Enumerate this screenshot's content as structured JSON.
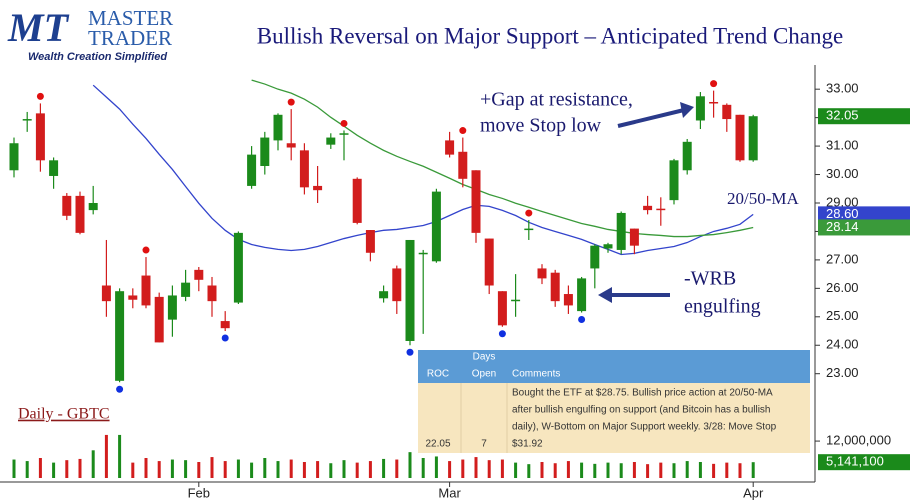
{
  "header": {
    "logo_mark": "MT",
    "logo_line1": "MASTER",
    "logo_line2": "TRADER",
    "tagline": "Wealth Creation Simplified"
  },
  "chart_data": {
    "type": "candlestick",
    "title": "Bullish Reversal on Major Support – Anticipated Trend Change",
    "label": "Daily - GBTC",
    "categories": [
      null,
      null,
      null,
      null,
      null,
      null,
      null,
      null,
      null,
      null,
      null,
      null,
      null,
      null,
      "Feb",
      null,
      null,
      null,
      null,
      null,
      null,
      null,
      null,
      null,
      null,
      null,
      null,
      null,
      null,
      null,
      null,
      null,
      null,
      "Mar",
      null,
      null,
      null,
      null,
      null,
      null,
      null,
      null,
      null,
      null,
      null,
      null,
      null,
      null,
      null,
      null,
      null,
      null,
      null,
      null,
      null,
      null,
      "Apr"
    ],
    "open": [
      30.15,
      31.9,
      32.15,
      29.95,
      29.25,
      29.25,
      28.75,
      26.1,
      22.75,
      25.75,
      26.45,
      25.7,
      24.9,
      25.7,
      26.65,
      26.1,
      24.85,
      25.5,
      29.6,
      30.3,
      31.2,
      31.1,
      30.85,
      29.6,
      31.05,
      31.4,
      29.85,
      28.05,
      25.65,
      26.7,
      24.15,
      27.2,
      26.95,
      31.2,
      30.8,
      30.15,
      27.75,
      25.9,
      25.55,
      28.05,
      26.7,
      26.55,
      25.8,
      25.2,
      26.7,
      27.4,
      27.35,
      28.1,
      28.9,
      28.8,
      29.1,
      30.15,
      31.9,
      32.55,
      32.45,
      32.1,
      30.5
    ],
    "high": [
      31.3,
      32.2,
      32.5,
      30.6,
      29.35,
      29.4,
      29.6,
      27.7,
      26.0,
      26.0,
      27.1,
      25.85,
      26.1,
      26.65,
      26.75,
      26.4,
      25.2,
      28.0,
      31.0,
      31.5,
      32.15,
      32.3,
      31.1,
      30.3,
      31.45,
      31.55,
      29.9,
      28.05,
      26.1,
      26.8,
      27.7,
      27.35,
      29.5,
      31.5,
      31.3,
      30.15,
      27.75,
      25.9,
      26.5,
      28.4,
      26.85,
      26.65,
      26.1,
      26.4,
      27.55,
      27.6,
      28.7,
      28.1,
      29.25,
      29.2,
      30.55,
      31.25,
      32.9,
      32.95,
      32.5,
      32.1,
      32.1
    ],
    "low": [
      29.9,
      31.5,
      30.1,
      29.5,
      28.4,
      27.9,
      28.6,
      25.0,
      22.7,
      25.3,
      25.3,
      24.1,
      24.3,
      25.55,
      25.9,
      25.0,
      24.5,
      25.45,
      29.5,
      30.0,
      30.85,
      30.5,
      29.3,
      29.0,
      30.9,
      30.5,
      28.25,
      26.95,
      25.5,
      25.1,
      24.0,
      24.4,
      26.9,
      30.6,
      29.55,
      27.6,
      25.8,
      24.65,
      25.0,
      27.7,
      26.15,
      25.35,
      25.1,
      25.15,
      26.0,
      27.25,
      27.2,
      27.2,
      28.6,
      28.2,
      28.95,
      30.0,
      31.6,
      32.0,
      31.5,
      30.45,
      30.45
    ],
    "close": [
      31.1,
      31.95,
      30.5,
      30.5,
      28.55,
      27.95,
      29.0,
      25.55,
      25.9,
      25.6,
      25.4,
      24.1,
      25.75,
      26.2,
      26.3,
      25.55,
      24.6,
      27.95,
      30.7,
      31.3,
      32.1,
      30.95,
      29.55,
      29.45,
      31.3,
      31.45,
      28.3,
      27.25,
      25.9,
      25.55,
      27.7,
      27.25,
      29.4,
      30.7,
      29.85,
      27.95,
      26.1,
      24.7,
      25.6,
      28.1,
      26.35,
      25.55,
      25.4,
      26.35,
      27.5,
      27.55,
      28.65,
      27.5,
      28.75,
      28.75,
      30.5,
      31.15,
      32.75,
      32.5,
      31.95,
      30.5,
      32.05
    ],
    "close_label": {
      "value": 32.05,
      "label": "32.05"
    },
    "up_color": "#1b8a1b",
    "down_color": "#d21d1d",
    "pivot_highs": [
      2,
      10,
      21,
      25,
      34,
      39,
      53
    ],
    "pivot_lows": [
      8,
      16,
      30,
      37,
      43
    ],
    "pivot_high_color": "#e01010",
    "pivot_low_color": "#1030e0",
    "series": [
      {
        "name": "20-MA",
        "color": "#3344cc",
        "last_label": {
          "value": 28.6,
          "label": "28.60"
        },
        "values": [
          null,
          null,
          null,
          null,
          null,
          null,
          33.14,
          32.72,
          32.3,
          31.77,
          31.27,
          30.71,
          30.18,
          29.58,
          28.99,
          28.46,
          28.04,
          27.72,
          27.54,
          27.44,
          27.37,
          27.33,
          27.37,
          27.47,
          27.61,
          27.75,
          27.86,
          27.96,
          28.04,
          28.07,
          28.14,
          28.21,
          28.35,
          28.56,
          28.77,
          28.92,
          28.88,
          28.74,
          28.56,
          28.32,
          28.14,
          28.0,
          27.86,
          27.72,
          27.54,
          27.37,
          27.19,
          27.23,
          27.33,
          27.4,
          27.47,
          27.61,
          27.82,
          28.0,
          28.11,
          28.25,
          28.6
        ]
      },
      {
        "name": "50-MA",
        "color": "#3a9a3a",
        "last_label": {
          "value": 28.14,
          "label": "28.14"
        },
        "values": [
          null,
          null,
          null,
          null,
          null,
          null,
          null,
          null,
          null,
          null,
          null,
          null,
          null,
          null,
          null,
          null,
          null,
          null,
          33.32,
          33.18,
          33.0,
          32.86,
          32.65,
          32.37,
          32.01,
          31.7,
          31.38,
          31.1,
          30.85,
          30.64,
          30.46,
          30.29,
          30.08,
          29.87,
          29.65,
          29.48,
          29.3,
          29.16,
          28.99,
          28.85,
          28.7,
          28.56,
          28.42,
          28.28,
          28.18,
          28.07,
          28.0,
          27.93,
          27.89,
          27.86,
          27.82,
          27.82,
          27.86,
          27.89,
          27.96,
          28.04,
          28.14
        ]
      }
    ],
    "ylim": [
      21.9,
      33.85
    ],
    "yticks": [
      {
        "value": 33,
        "label": "33.00"
      },
      {
        "value": 32,
        "label": "32.00"
      },
      {
        "value": 31,
        "label": "31.00"
      },
      {
        "value": 30,
        "label": "30.00"
      },
      {
        "value": 29,
        "label": "29.00"
      },
      {
        "value": 28,
        "label": "28.00"
      },
      {
        "value": 27,
        "label": "27.00"
      },
      {
        "value": 26,
        "label": "26.00"
      },
      {
        "value": 25,
        "label": "25.00"
      },
      {
        "value": 24,
        "label": "24.00"
      },
      {
        "value": 23,
        "label": "23.00"
      }
    ],
    "volume": [
      6000000,
      5500000,
      6500000,
      5000000,
      5800000,
      6200000,
      9000000,
      14000000,
      14000000,
      5000000,
      6500000,
      5500000,
      6000000,
      5800000,
      5200000,
      6800000,
      5500000,
      6000000,
      5000000,
      6500000,
      5500000,
      6000000,
      5200000,
      5500000,
      4800000,
      5800000,
      5000000,
      5500000,
      6200000,
      6000000,
      8400000,
      6500000,
      7000000,
      5500000,
      6000000,
      6800000,
      5800000,
      6000000,
      5000000,
      4500000,
      5200000,
      4800000,
      5500000,
      5000000,
      4600000,
      5000000,
      4800000,
      5200000,
      4500000,
      5000000,
      4800000,
      5500000,
      5200000,
      4600000,
      5000000,
      4800000,
      5141100
    ],
    "volume_label": {
      "value": 5141100,
      "label": "5,141,100"
    },
    "volume_ylim": [
      0,
      15600000
    ],
    "volume_yticks": [
      {
        "value": 12000000,
        "label": "12,000,000"
      }
    ],
    "annotations": [
      [
        "+Gap at resistance,",
        "move Stop low"
      ],
      [
        "20/50-MA"
      ],
      [
        "-WRB",
        "engulfing"
      ]
    ]
  },
  "table": {
    "headers": [
      "ROC",
      [
        "Days",
        "Open"
      ],
      "Comments"
    ],
    "rows": [
      [
        "22.05",
        "7",
        [
          "Bought the ETF at $28.75. Bullish price action at 20/50-MA",
          "after bullish engulfing on support (and Bitcoin has a bullish",
          "daily), W-Bottom on Major Support weekly.  3/28:  Move Stop",
          "$31.92"
        ]
      ]
    ]
  }
}
